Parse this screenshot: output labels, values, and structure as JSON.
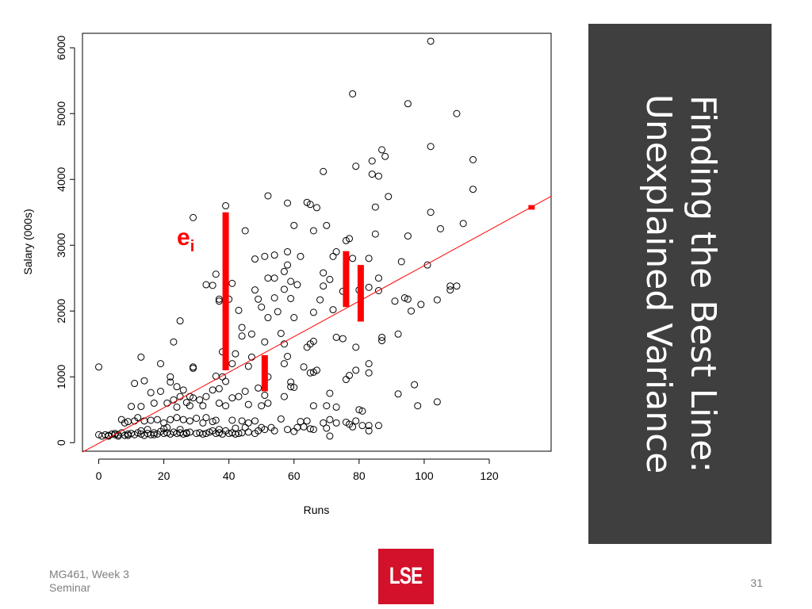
{
  "slide": {
    "title_line1": "Finding the Best Line:",
    "title_line2": "Unexplained Variance",
    "footer_course": "MG461, Week 3",
    "footer_session": "Seminar",
    "page_number": "31",
    "logo_text": "LSE",
    "colors": {
      "panel": "#3f3f3f",
      "logo": "#d3112b",
      "accent": "#ff0000"
    }
  },
  "chart_data": {
    "type": "scatter",
    "xlabel": "Runs",
    "ylabel": "Salary (000s)",
    "xlim": [
      -5,
      139
    ],
    "ylim": [
      -130,
      6220
    ],
    "xticks": [
      0,
      20,
      40,
      60,
      80,
      100,
      120
    ],
    "yticks": [
      0,
      1000,
      2000,
      3000,
      4000,
      5000,
      6000
    ],
    "marker": "open-circle",
    "fit_line": {
      "intercept": -10,
      "slope": 27,
      "color": "#ff0000"
    },
    "residual_label": {
      "main": "e",
      "sub": "i",
      "x": 24,
      "y": 3000
    },
    "residuals": [
      {
        "x": 39,
        "y_from": 1100,
        "y_to": 3500
      },
      {
        "x": 51,
        "y_from": 780,
        "y_to": 1330
      },
      {
        "x": 76,
        "y_from": 2060,
        "y_to": 2910
      },
      {
        "x": 80.5,
        "y_from": 1840,
        "y_to": 2700
      },
      {
        "x": 133,
        "y_from": 3540,
        "y_to": 3610
      }
    ],
    "points": [
      [
        102,
        6100
      ],
      [
        78,
        5300
      ],
      [
        95,
        5150
      ],
      [
        110,
        5000
      ],
      [
        102,
        4500
      ],
      [
        87,
        4450
      ],
      [
        88,
        4350
      ],
      [
        115,
        4300
      ],
      [
        84,
        4280
      ],
      [
        79,
        4200
      ],
      [
        69,
        4120
      ],
      [
        86,
        4050
      ],
      [
        84,
        4080
      ],
      [
        115,
        3850
      ],
      [
        52,
        3750
      ],
      [
        89,
        3740
      ],
      [
        64,
        3650
      ],
      [
        58,
        3640
      ],
      [
        65,
        3620
      ],
      [
        67,
        3570
      ],
      [
        85,
        3580
      ],
      [
        102,
        3500
      ],
      [
        29,
        3420
      ],
      [
        105,
        3250
      ],
      [
        39,
        3600
      ],
      [
        112,
        3330
      ],
      [
        70,
        3300
      ],
      [
        60,
        3300
      ],
      [
        95,
        3140
      ],
      [
        85,
        3170
      ],
      [
        45,
        3220
      ],
      [
        66,
        3220
      ],
      [
        76,
        3070
      ],
      [
        77,
        3100
      ],
      [
        58,
        2900
      ],
      [
        73,
        2900
      ],
      [
        62,
        2830
      ],
      [
        54,
        2850
      ],
      [
        48,
        2790
      ],
      [
        51,
        2830
      ],
      [
        72,
        2830
      ],
      [
        83,
        2800
      ],
      [
        78,
        2800
      ],
      [
        93,
        2750
      ],
      [
        101,
        2700
      ],
      [
        58,
        2700
      ],
      [
        57,
        2600
      ],
      [
        69,
        2580
      ],
      [
        71,
        2480
      ],
      [
        52,
        2500
      ],
      [
        54,
        2500
      ],
      [
        86,
        2500
      ],
      [
        36,
        2560
      ],
      [
        59,
        2450
      ],
      [
        33,
        2400
      ],
      [
        35,
        2390
      ],
      [
        41,
        2420
      ],
      [
        48,
        2320
      ],
      [
        57,
        2330
      ],
      [
        61,
        2400
      ],
      [
        69,
        2380
      ],
      [
        75,
        2300
      ],
      [
        80,
        2320
      ],
      [
        108,
        2380
      ],
      [
        110,
        2380
      ],
      [
        108,
        2320
      ],
      [
        83,
        2360
      ],
      [
        94,
        2200
      ],
      [
        95,
        2180
      ],
      [
        86,
        2310
      ],
      [
        37,
        2180
      ],
      [
        37,
        2150
      ],
      [
        40,
        2180
      ],
      [
        49,
        2180
      ],
      [
        54,
        2200
      ],
      [
        59,
        2190
      ],
      [
        68,
        2170
      ],
      [
        91,
        2150
      ],
      [
        104,
        2170
      ],
      [
        99,
        2100
      ],
      [
        96,
        2000
      ],
      [
        50,
        2060
      ],
      [
        43,
        2010
      ],
      [
        60,
        1900
      ],
      [
        66,
        1980
      ],
      [
        72,
        2020
      ],
      [
        52,
        1900
      ],
      [
        55,
        1990
      ],
      [
        25,
        1850
      ],
      [
        44,
        1750
      ],
      [
        44,
        1620
      ],
      [
        47,
        1650
      ],
      [
        56,
        1660
      ],
      [
        51,
        1530
      ],
      [
        57,
        1500
      ],
      [
        64,
        1450
      ],
      [
        65,
        1500
      ],
      [
        66,
        1540
      ],
      [
        73,
        1600
      ],
      [
        75,
        1580
      ],
      [
        79,
        1450
      ],
      [
        87,
        1600
      ],
      [
        87,
        1550
      ],
      [
        92,
        1650
      ],
      [
        23,
        1530
      ],
      [
        38,
        1380
      ],
      [
        42,
        1350
      ],
      [
        47,
        1300
      ],
      [
        57,
        1200
      ],
      [
        58,
        1310
      ],
      [
        63,
        1150
      ],
      [
        66,
        1070
      ],
      [
        77,
        1020
      ],
      [
        79,
        1100
      ],
      [
        67,
        1100
      ],
      [
        65,
        1060
      ],
      [
        83,
        1200
      ],
      [
        13,
        1300
      ],
      [
        0,
        1150
      ],
      [
        19,
        1200
      ],
      [
        22,
        1000
      ],
      [
        29,
        1150
      ],
      [
        29,
        1130
      ],
      [
        41,
        1200
      ],
      [
        46,
        1160
      ],
      [
        36,
        1010
      ],
      [
        38,
        1000
      ],
      [
        52,
        1000
      ],
      [
        59,
        920
      ],
      [
        59,
        850
      ],
      [
        60,
        840
      ],
      [
        71,
        750
      ],
      [
        76,
        960
      ],
      [
        83,
        1060
      ],
      [
        97,
        880
      ],
      [
        11,
        900
      ],
      [
        14,
        940
      ],
      [
        22,
        920
      ],
      [
        24,
        850
      ],
      [
        26,
        800
      ],
      [
        35,
        800
      ],
      [
        37,
        820
      ],
      [
        39,
        930
      ],
      [
        28,
        700
      ],
      [
        29,
        680
      ],
      [
        31,
        650
      ],
      [
        33,
        700
      ],
      [
        43,
        700
      ],
      [
        45,
        780
      ],
      [
        49,
        830
      ],
      [
        51,
        720
      ],
      [
        57,
        700
      ],
      [
        19,
        780
      ],
      [
        16,
        760
      ],
      [
        10,
        550
      ],
      [
        13,
        550
      ],
      [
        17,
        600
      ],
      [
        21,
        600
      ],
      [
        23,
        650
      ],
      [
        25,
        700
      ],
      [
        24,
        540
      ],
      [
        27,
        610
      ],
      [
        28,
        560
      ],
      [
        32,
        560
      ],
      [
        37,
        600
      ],
      [
        39,
        560
      ],
      [
        41,
        680
      ],
      [
        46,
        580
      ],
      [
        50,
        560
      ],
      [
        52,
        600
      ],
      [
        66,
        560
      ],
      [
        70,
        560
      ],
      [
        73,
        540
      ],
      [
        80,
        500
      ],
      [
        81,
        480
      ],
      [
        92,
        740
      ],
      [
        98,
        560
      ],
      [
        104,
        620
      ],
      [
        7,
        350
      ],
      [
        8,
        300
      ],
      [
        9,
        320
      ],
      [
        11,
        330
      ],
      [
        12,
        380
      ],
      [
        14,
        330
      ],
      [
        16,
        340
      ],
      [
        18,
        350
      ],
      [
        20,
        300
      ],
      [
        22,
        350
      ],
      [
        24,
        380
      ],
      [
        26,
        350
      ],
      [
        28,
        330
      ],
      [
        30,
        370
      ],
      [
        32,
        300
      ],
      [
        33,
        380
      ],
      [
        35,
        320
      ],
      [
        36,
        340
      ],
      [
        41,
        340
      ],
      [
        44,
        330
      ],
      [
        46,
        300
      ],
      [
        48,
        330
      ],
      [
        56,
        360
      ],
      [
        62,
        320
      ],
      [
        64,
        330
      ],
      [
        69,
        300
      ],
      [
        71,
        350
      ],
      [
        73,
        300
      ],
      [
        76,
        310
      ],
      [
        77,
        280
      ],
      [
        79,
        330
      ],
      [
        83,
        260
      ],
      [
        83,
        180
      ],
      [
        86,
        260
      ],
      [
        1,
        100
      ],
      [
        2,
        120
      ],
      [
        3,
        110
      ],
      [
        4,
        130
      ],
      [
        5,
        140
      ],
      [
        6,
        120
      ],
      [
        7,
        150
      ],
      [
        8,
        110
      ],
      [
        9,
        130
      ],
      [
        10,
        140
      ],
      [
        11,
        120
      ],
      [
        12,
        150
      ],
      [
        13,
        130
      ],
      [
        14,
        110
      ],
      [
        15,
        140
      ],
      [
        16,
        120
      ],
      [
        17,
        150
      ],
      [
        18,
        130
      ],
      [
        19,
        170
      ],
      [
        20,
        140
      ],
      [
        21,
        150
      ],
      [
        22,
        130
      ],
      [
        23,
        160
      ],
      [
        24,
        140
      ],
      [
        25,
        150
      ],
      [
        26,
        130
      ],
      [
        27,
        140
      ],
      [
        28,
        160
      ],
      [
        30,
        140
      ],
      [
        31,
        150
      ],
      [
        32,
        130
      ],
      [
        33,
        140
      ],
      [
        34,
        160
      ],
      [
        36,
        140
      ],
      [
        37,
        150
      ],
      [
        38,
        130
      ],
      [
        40,
        140
      ],
      [
        41,
        150
      ],
      [
        42,
        130
      ],
      [
        43,
        140
      ],
      [
        44,
        150
      ],
      [
        46,
        160
      ],
      [
        48,
        140
      ],
      [
        50,
        230
      ],
      [
        51,
        200
      ],
      [
        53,
        230
      ],
      [
        60,
        170
      ],
      [
        63,
        240
      ],
      [
        65,
        210
      ],
      [
        66,
        200
      ],
      [
        70,
        220
      ],
      [
        71,
        100
      ],
      [
        78,
        240
      ],
      [
        81,
        260
      ],
      [
        0,
        120
      ],
      [
        3,
        100
      ],
      [
        5,
        120
      ],
      [
        6,
        100
      ],
      [
        9,
        110
      ],
      [
        13,
        180
      ],
      [
        15,
        200
      ],
      [
        17,
        120
      ],
      [
        20,
        210
      ],
      [
        21,
        230
      ],
      [
        25,
        200
      ],
      [
        27,
        150
      ],
      [
        35,
        180
      ],
      [
        37,
        200
      ],
      [
        39,
        180
      ],
      [
        42,
        220
      ],
      [
        45,
        230
      ],
      [
        49,
        180
      ],
      [
        54,
        180
      ],
      [
        58,
        200
      ],
      [
        61,
        230
      ]
    ]
  }
}
